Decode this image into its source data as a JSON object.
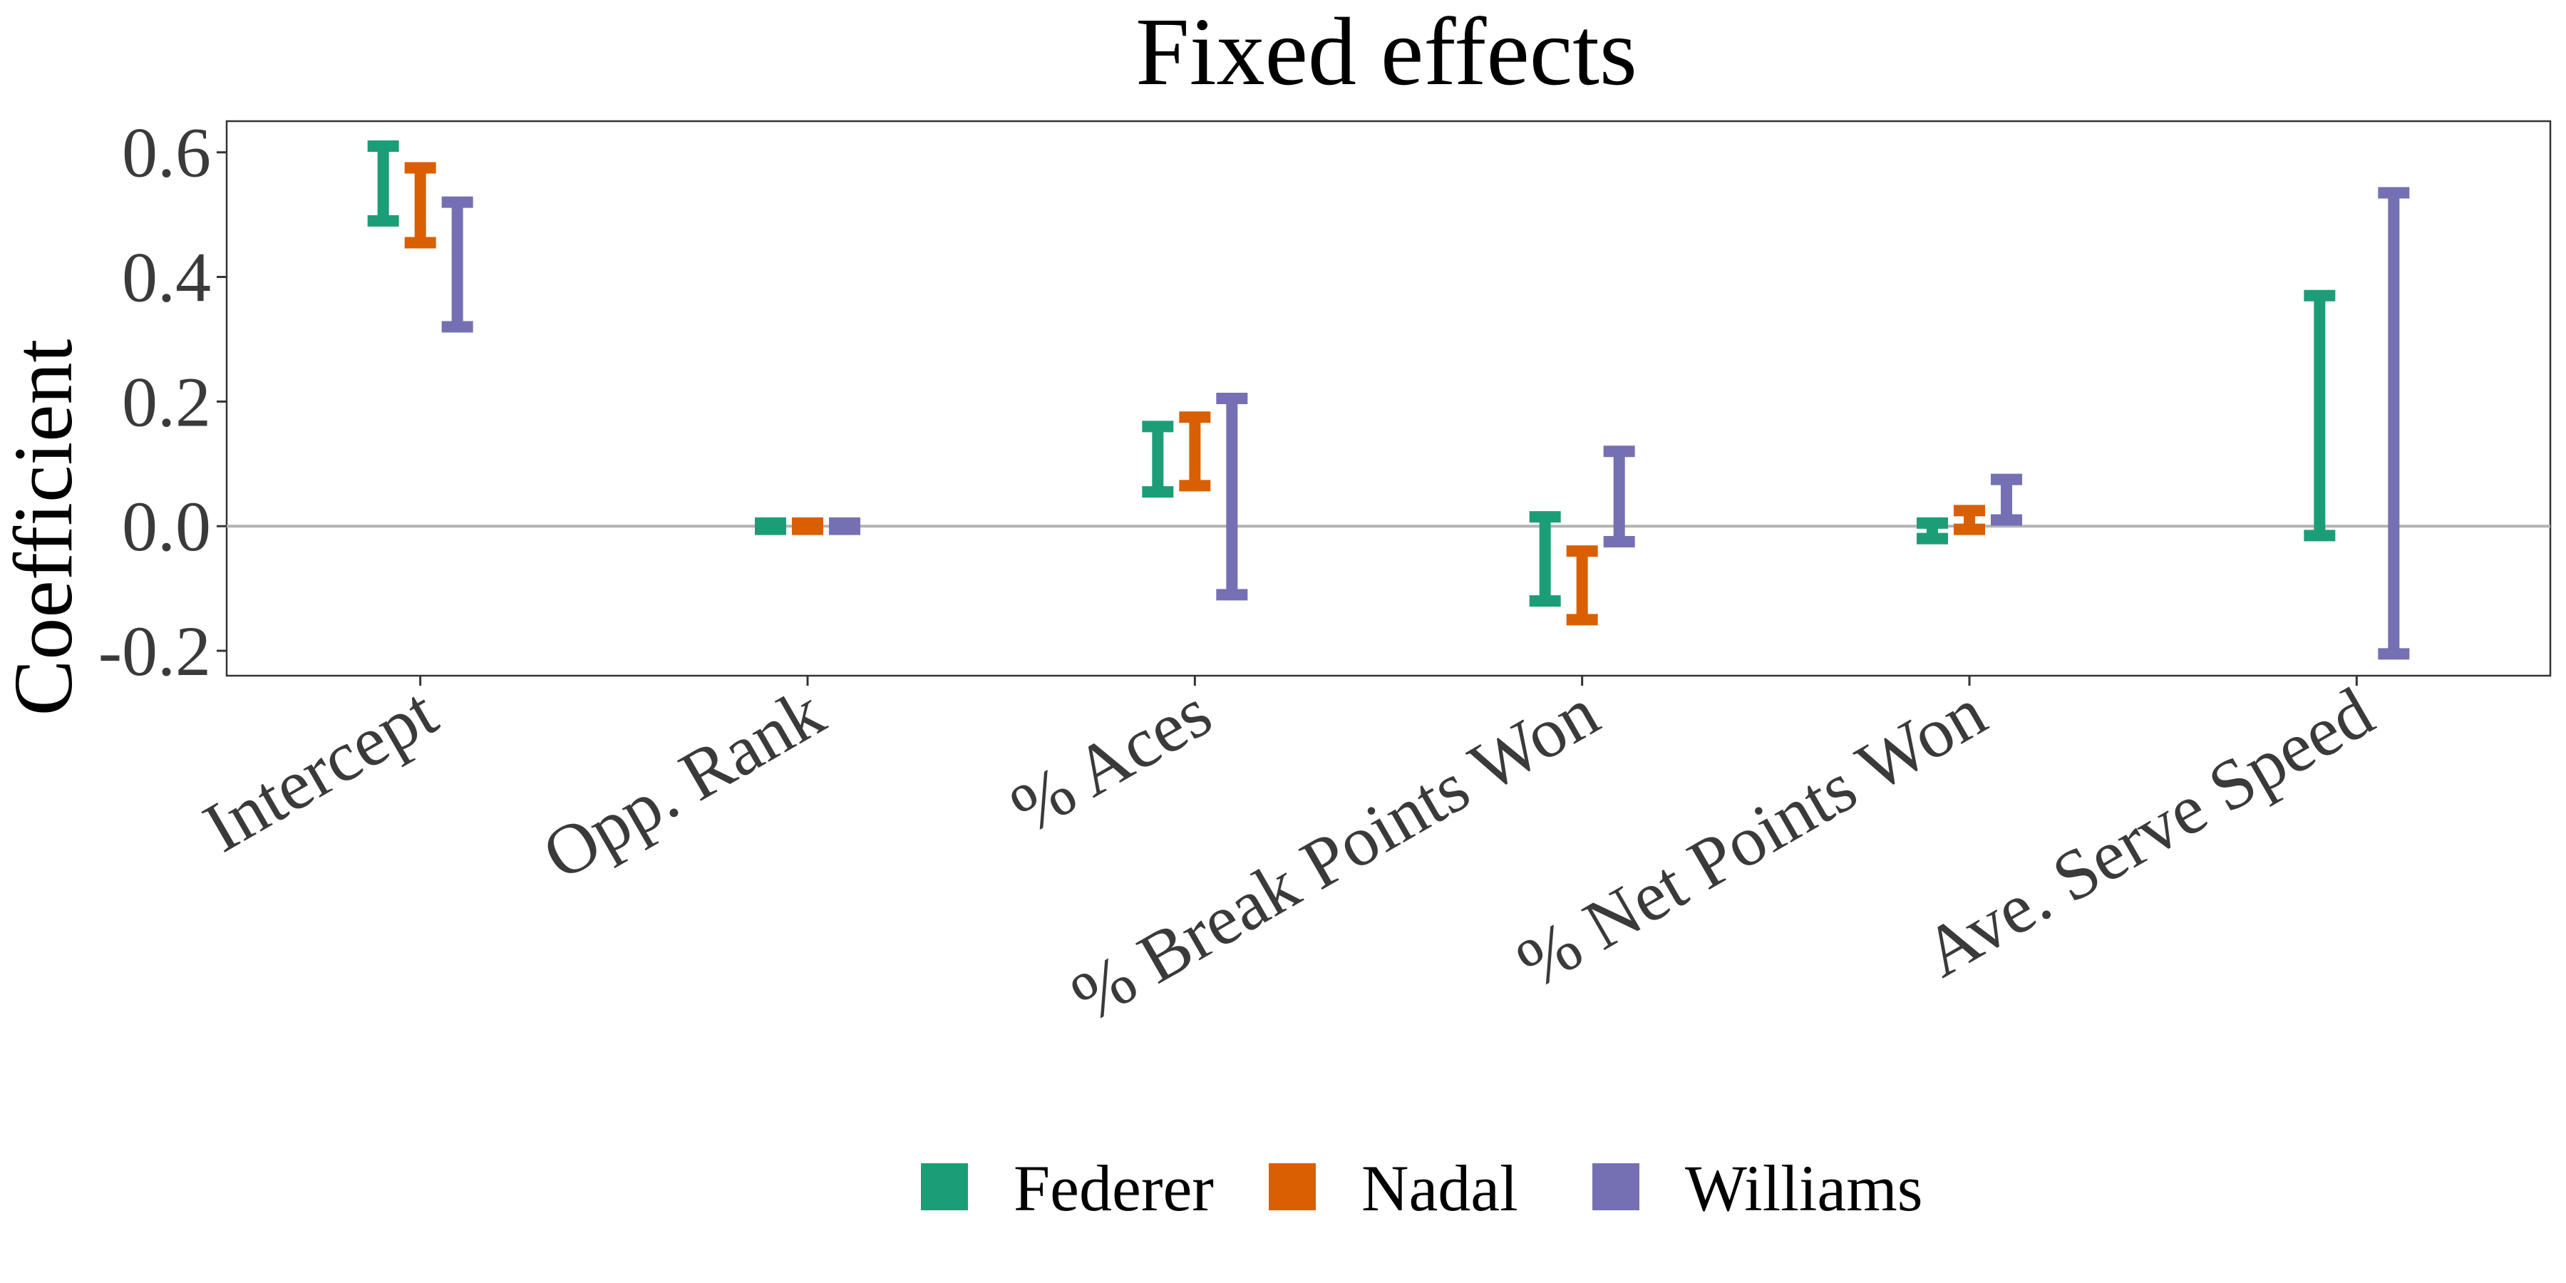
{
  "chart_data": {
    "type": "errorbar",
    "title": "Fixed effects",
    "xlabel": "",
    "ylabel": "Coefficient",
    "ylim": [
      -0.24,
      0.65
    ],
    "y_ticks": [
      "0.6",
      "0.4",
      "0.2",
      "0.0",
      "-0.2"
    ],
    "y_tick_values": [
      0.6,
      0.4,
      0.2,
      0.0,
      -0.2
    ],
    "categories": [
      "Intercept",
      "Opp. Rank",
      "% Aces",
      "% Break Points Won",
      "% Net Points Won",
      "Ave. Serve Speed"
    ],
    "reference_line": 0.0,
    "grid": false,
    "legend_position": "bottom",
    "series": [
      {
        "name": "Federer",
        "color": "#1b9e77",
        "intervals": [
          [
            0.49,
            0.61
          ],
          [
            -0.005,
            0.005
          ],
          [
            0.055,
            0.16
          ],
          [
            -0.12,
            0.015
          ],
          [
            -0.02,
            0.005
          ],
          [
            -0.015,
            0.37
          ]
        ]
      },
      {
        "name": "Nadal",
        "color": "#d95f02",
        "intervals": [
          [
            0.455,
            0.575
          ],
          [
            -0.005,
            0.005
          ],
          [
            0.065,
            0.175
          ],
          [
            -0.15,
            -0.04
          ],
          [
            -0.005,
            0.025
          ],
          [
            null,
            null
          ]
        ]
      },
      {
        "name": "Williams",
        "color": "#7570b3",
        "intervals": [
          [
            0.32,
            0.52
          ],
          [
            -0.005,
            0.005
          ],
          [
            -0.11,
            0.205
          ],
          [
            -0.025,
            0.12
          ],
          [
            0.01,
            0.075
          ],
          [
            -0.205,
            0.535
          ]
        ]
      }
    ]
  }
}
